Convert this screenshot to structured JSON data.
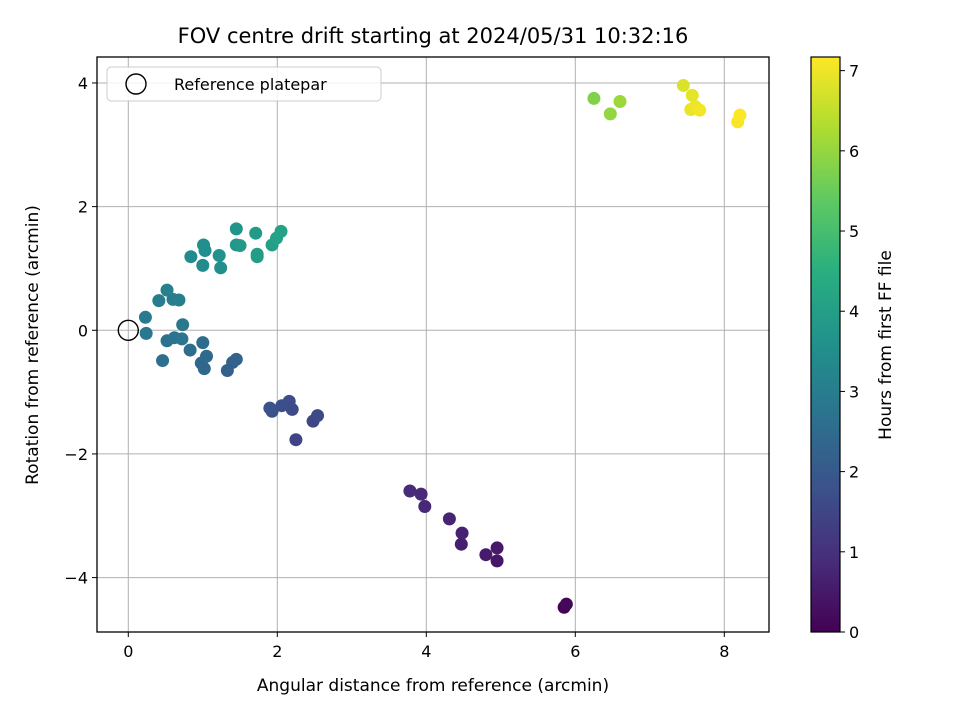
{
  "chart_data": {
    "type": "scatter",
    "title": "FOV centre drift starting at 2024/05/31 10:32:16",
    "xlabel": "Angular distance from reference (arcmin)",
    "ylabel": "Rotation from reference (arcmin)",
    "xlim": [
      -0.42,
      8.6
    ],
    "ylim": [
      -4.88,
      4.42
    ],
    "xticks": [
      0,
      2,
      4,
      6,
      8
    ],
    "xtick_labels": [
      "0",
      "2",
      "4",
      "6",
      "8"
    ],
    "yticks": [
      -4,
      -2,
      0,
      2,
      4
    ],
    "ytick_labels": [
      "−4",
      "−2",
      "0",
      "2",
      "4"
    ],
    "grid": true,
    "legend": {
      "position": "top-left",
      "entries": [
        "Reference platepar"
      ]
    },
    "reference_point": {
      "x": 0,
      "y": 0
    },
    "colorbar": {
      "label": "Hours from first FF file",
      "range": [
        0,
        7.17
      ],
      "ticks": [
        0,
        1,
        2,
        3,
        4,
        5,
        6,
        7
      ],
      "tick_labels": [
        "0",
        "1",
        "2",
        "3",
        "4",
        "5",
        "6",
        "7"
      ],
      "colormap": "viridis"
    },
    "series": [
      {
        "points": [
          {
            "x": 5.85,
            "y": -4.48,
            "c": 0.05
          },
          {
            "x": 5.88,
            "y": -4.43,
            "c": 0.12
          },
          {
            "x": 4.95,
            "y": -3.73,
            "c": 0.45
          },
          {
            "x": 4.95,
            "y": -3.52,
            "c": 0.5
          },
          {
            "x": 4.8,
            "y": -3.63,
            "c": 0.55
          },
          {
            "x": 4.47,
            "y": -3.46,
            "c": 0.62
          },
          {
            "x": 4.48,
            "y": -3.28,
            "c": 0.68
          },
          {
            "x": 4.31,
            "y": -3.05,
            "c": 0.75
          },
          {
            "x": 3.98,
            "y": -2.85,
            "c": 0.8
          },
          {
            "x": 3.93,
            "y": -2.65,
            "c": 0.86
          },
          {
            "x": 3.78,
            "y": -2.6,
            "c": 0.9
          },
          {
            "x": 2.25,
            "y": -1.77,
            "c": 1.45
          },
          {
            "x": 2.48,
            "y": -1.47,
            "c": 1.55
          },
          {
            "x": 2.54,
            "y": -1.38,
            "c": 1.6
          },
          {
            "x": 2.2,
            "y": -1.28,
            "c": 1.65
          },
          {
            "x": 2.16,
            "y": -1.15,
            "c": 1.7
          },
          {
            "x": 2.06,
            "y": -1.22,
            "c": 1.75
          },
          {
            "x": 1.93,
            "y": -1.31,
            "c": 1.8
          },
          {
            "x": 1.9,
            "y": -1.26,
            "c": 1.85
          },
          {
            "x": 1.33,
            "y": -0.65,
            "c": 2.2
          },
          {
            "x": 1.4,
            "y": -0.52,
            "c": 2.25
          },
          {
            "x": 1.45,
            "y": -0.47,
            "c": 2.3
          },
          {
            "x": 1.02,
            "y": -0.62,
            "c": 2.4
          },
          {
            "x": 0.98,
            "y": -0.53,
            "c": 2.45
          },
          {
            "x": 1.05,
            "y": -0.42,
            "c": 2.5
          },
          {
            "x": 1.0,
            "y": -0.2,
            "c": 2.55
          },
          {
            "x": 0.83,
            "y": -0.32,
            "c": 2.6
          },
          {
            "x": 0.46,
            "y": -0.49,
            "c": 2.65
          },
          {
            "x": 0.52,
            "y": -0.17,
            "c": 2.7
          },
          {
            "x": 0.62,
            "y": -0.12,
            "c": 2.75
          },
          {
            "x": 0.72,
            "y": -0.14,
            "c": 2.8
          },
          {
            "x": 0.73,
            "y": 0.09,
            "c": 2.85
          },
          {
            "x": 0.24,
            "y": -0.05,
            "c": 2.9
          },
          {
            "x": 0.23,
            "y": 0.21,
            "c": 2.95
          },
          {
            "x": 0.41,
            "y": 0.48,
            "c": 3.0
          },
          {
            "x": 0.6,
            "y": 0.5,
            "c": 3.05
          },
          {
            "x": 0.68,
            "y": 0.49,
            "c": 3.1
          },
          {
            "x": 0.52,
            "y": 0.65,
            "c": 3.15
          },
          {
            "x": 1.0,
            "y": 1.05,
            "c": 3.4
          },
          {
            "x": 0.84,
            "y": 1.19,
            "c": 3.45
          },
          {
            "x": 1.01,
            "y": 1.38,
            "c": 3.5
          },
          {
            "x": 1.03,
            "y": 1.29,
            "c": 3.55
          },
          {
            "x": 1.24,
            "y": 1.01,
            "c": 3.6
          },
          {
            "x": 1.22,
            "y": 1.21,
            "c": 3.65
          },
          {
            "x": 1.45,
            "y": 1.64,
            "c": 3.75
          },
          {
            "x": 1.45,
            "y": 1.38,
            "c": 3.8
          },
          {
            "x": 1.5,
            "y": 1.37,
            "c": 3.85
          },
          {
            "x": 1.71,
            "y": 1.57,
            "c": 3.9
          },
          {
            "x": 1.73,
            "y": 1.19,
            "c": 3.95
          },
          {
            "x": 1.73,
            "y": 1.23,
            "c": 4.0
          },
          {
            "x": 1.93,
            "y": 1.38,
            "c": 4.05
          },
          {
            "x": 1.99,
            "y": 1.49,
            "c": 4.1
          },
          {
            "x": 2.05,
            "y": 1.6,
            "c": 4.15
          },
          {
            "x": 6.25,
            "y": 3.75,
            "c": 5.8
          },
          {
            "x": 6.47,
            "y": 3.5,
            "c": 6.0
          },
          {
            "x": 6.6,
            "y": 3.7,
            "c": 6.1
          },
          {
            "x": 7.45,
            "y": 3.96,
            "c": 6.8
          },
          {
            "x": 7.57,
            "y": 3.8,
            "c": 6.9
          },
          {
            "x": 7.55,
            "y": 3.57,
            "c": 6.95
          },
          {
            "x": 7.61,
            "y": 3.62,
            "c": 7.0
          },
          {
            "x": 7.67,
            "y": 3.56,
            "c": 7.05
          },
          {
            "x": 8.18,
            "y": 3.37,
            "c": 7.1
          },
          {
            "x": 8.21,
            "y": 3.48,
            "c": 7.15
          }
        ]
      }
    ]
  }
}
